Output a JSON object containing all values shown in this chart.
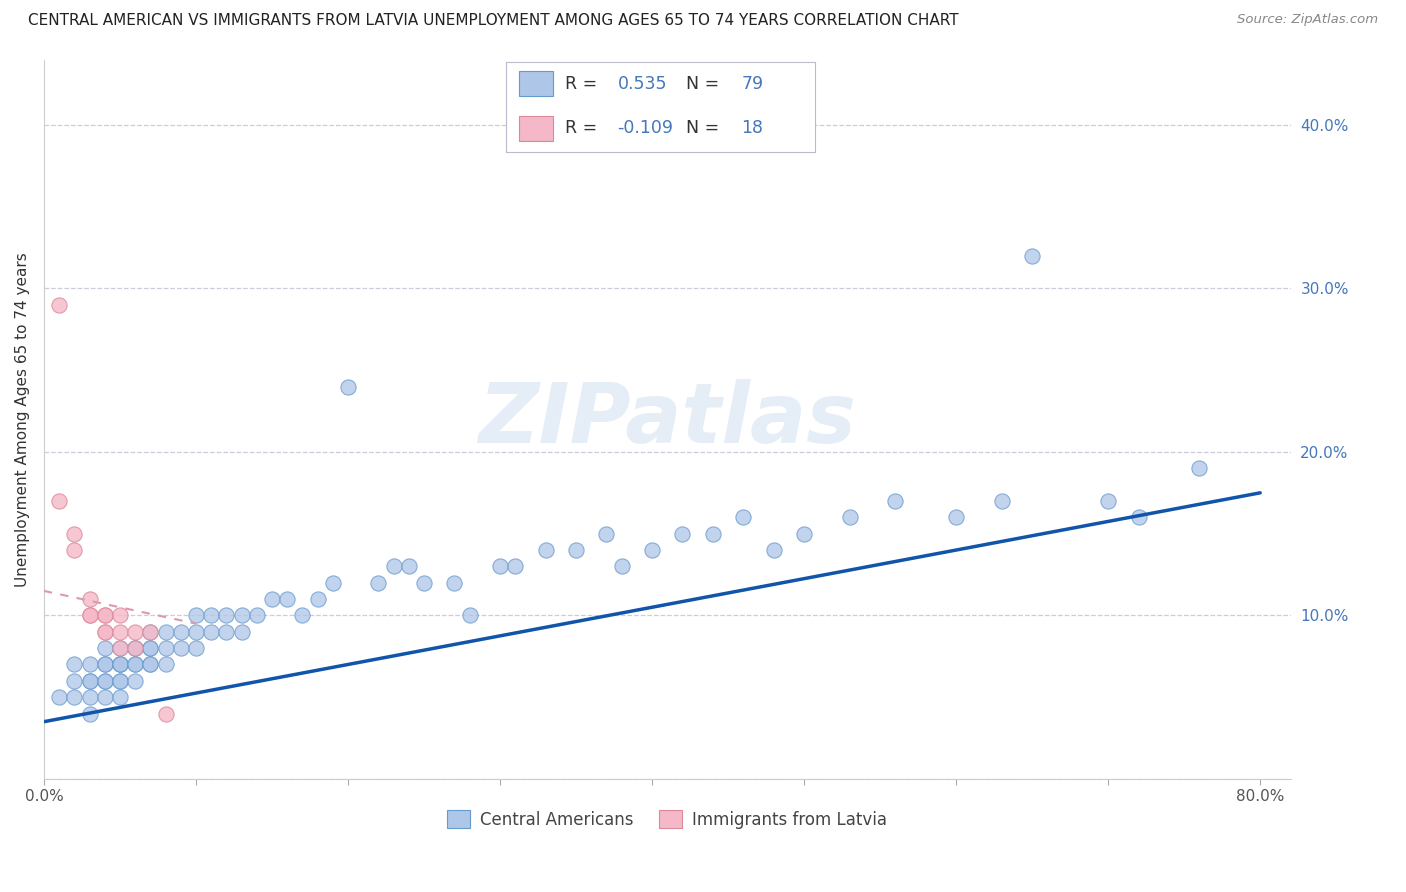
{
  "title": "CENTRAL AMERICAN VS IMMIGRANTS FROM LATVIA UNEMPLOYMENT AMONG AGES 65 TO 74 YEARS CORRELATION CHART",
  "source": "Source: ZipAtlas.com",
  "ylabel": "Unemployment Among Ages 65 to 74 years",
  "xlim": [
    0.0,
    0.82
  ],
  "ylim": [
    0.0,
    0.44
  ],
  "xticks": [
    0.0,
    0.1,
    0.2,
    0.3,
    0.4,
    0.5,
    0.6,
    0.7,
    0.8
  ],
  "yticks": [
    0.0,
    0.1,
    0.2,
    0.3,
    0.4
  ],
  "blue_R": 0.535,
  "blue_N": 79,
  "pink_R": -0.109,
  "pink_N": 18,
  "blue_fill": "#aec6e8",
  "blue_edge": "#6699cc",
  "pink_fill": "#f5b8c8",
  "pink_edge": "#dd8899",
  "blue_line_color": "#1155aa",
  "pink_line_color": "#dd99aa",
  "grid_color": "#ccccdd",
  "bg_color": "#ffffff",
  "ytick_color": "#4477bb",
  "watermark": "ZIPatlas",
  "blue_scatter_x": [
    0.01,
    0.02,
    0.02,
    0.02,
    0.03,
    0.03,
    0.03,
    0.03,
    0.03,
    0.04,
    0.04,
    0.04,
    0.04,
    0.04,
    0.04,
    0.05,
    0.05,
    0.05,
    0.05,
    0.05,
    0.05,
    0.05,
    0.06,
    0.06,
    0.06,
    0.06,
    0.06,
    0.07,
    0.07,
    0.07,
    0.07,
    0.07,
    0.08,
    0.08,
    0.08,
    0.09,
    0.09,
    0.1,
    0.1,
    0.1,
    0.11,
    0.11,
    0.12,
    0.12,
    0.13,
    0.13,
    0.14,
    0.15,
    0.16,
    0.17,
    0.18,
    0.19,
    0.2,
    0.22,
    0.23,
    0.24,
    0.25,
    0.27,
    0.28,
    0.3,
    0.31,
    0.33,
    0.35,
    0.37,
    0.38,
    0.4,
    0.42,
    0.44,
    0.46,
    0.48,
    0.5,
    0.53,
    0.56,
    0.6,
    0.63,
    0.65,
    0.7,
    0.72,
    0.76
  ],
  "blue_scatter_y": [
    0.05,
    0.05,
    0.06,
    0.07,
    0.04,
    0.05,
    0.06,
    0.07,
    0.06,
    0.05,
    0.06,
    0.06,
    0.07,
    0.08,
    0.07,
    0.05,
    0.06,
    0.07,
    0.06,
    0.07,
    0.07,
    0.08,
    0.06,
    0.07,
    0.07,
    0.08,
    0.08,
    0.07,
    0.07,
    0.08,
    0.08,
    0.09,
    0.07,
    0.08,
    0.09,
    0.08,
    0.09,
    0.08,
    0.09,
    0.1,
    0.09,
    0.1,
    0.09,
    0.1,
    0.09,
    0.1,
    0.1,
    0.11,
    0.11,
    0.1,
    0.11,
    0.12,
    0.24,
    0.12,
    0.13,
    0.13,
    0.12,
    0.12,
    0.1,
    0.13,
    0.13,
    0.14,
    0.14,
    0.15,
    0.13,
    0.14,
    0.15,
    0.15,
    0.16,
    0.14,
    0.15,
    0.16,
    0.17,
    0.16,
    0.17,
    0.32,
    0.17,
    0.16,
    0.19
  ],
  "pink_scatter_x": [
    0.01,
    0.01,
    0.02,
    0.02,
    0.03,
    0.03,
    0.03,
    0.04,
    0.04,
    0.04,
    0.04,
    0.05,
    0.05,
    0.05,
    0.06,
    0.06,
    0.07,
    0.08
  ],
  "pink_scatter_y": [
    0.29,
    0.17,
    0.15,
    0.14,
    0.1,
    0.11,
    0.1,
    0.09,
    0.1,
    0.09,
    0.1,
    0.09,
    0.08,
    0.1,
    0.09,
    0.08,
    0.09,
    0.04
  ],
  "blue_line_x0": 0.0,
  "blue_line_y0": 0.035,
  "blue_line_x1": 0.8,
  "blue_line_y1": 0.175,
  "pink_line_x0": 0.0,
  "pink_line_y0": 0.115,
  "pink_line_x1": 0.1,
  "pink_line_y1": 0.095,
  "figsize": [
    14.06,
    8.92
  ],
  "dpi": 100
}
